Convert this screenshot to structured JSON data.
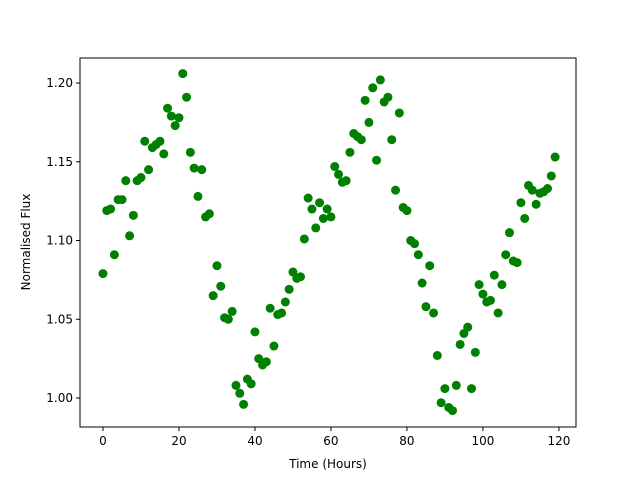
{
  "chart_data": {
    "type": "scatter",
    "xlabel": "Time (Hours)",
    "ylabel": "Normalised Flux",
    "color": "#008000",
    "x": [
      0,
      1,
      2,
      3,
      4,
      5,
      6,
      7,
      8,
      9,
      10,
      11,
      12,
      13,
      14,
      15,
      16,
      17,
      18,
      19,
      20,
      21,
      22,
      23,
      24,
      25,
      26,
      27,
      28,
      29,
      30,
      31,
      32,
      33,
      34,
      35,
      36,
      37,
      38,
      39,
      40,
      41,
      42,
      43,
      44,
      45,
      46,
      47,
      48,
      49,
      50,
      51,
      52,
      53,
      54,
      55,
      56,
      57,
      58,
      59,
      60,
      61,
      62,
      63,
      64,
      65,
      66,
      67,
      68,
      69,
      70,
      71,
      72,
      73,
      74,
      75,
      76,
      77,
      78,
      79,
      80,
      81,
      82,
      83,
      84,
      85,
      86,
      87,
      88,
      89,
      90,
      91,
      92,
      93,
      94,
      95,
      96,
      97,
      98,
      99,
      100,
      101,
      102,
      103,
      104,
      105,
      106,
      107,
      108,
      109,
      110,
      111,
      112,
      113,
      114,
      115,
      116,
      117,
      118,
      119
    ],
    "values": [
      1.079,
      1.119,
      1.12,
      1.091,
      1.126,
      1.126,
      1.138,
      1.103,
      1.116,
      1.138,
      1.14,
      1.163,
      1.145,
      1.159,
      1.161,
      1.163,
      1.155,
      1.184,
      1.179,
      1.173,
      1.178,
      1.206,
      1.191,
      1.156,
      1.146,
      1.128,
      1.145,
      1.115,
      1.117,
      1.065,
      1.084,
      1.071,
      1.051,
      1.05,
      1.055,
      1.008,
      1.003,
      0.996,
      1.012,
      1.009,
      1.042,
      1.025,
      1.021,
      1.023,
      1.057,
      1.033,
      1.053,
      1.054,
      1.061,
      1.069,
      1.08,
      1.076,
      1.077,
      1.101,
      1.127,
      1.12,
      1.108,
      1.124,
      1.114,
      1.12,
      1.115,
      1.147,
      1.142,
      1.137,
      1.138,
      1.156,
      1.168,
      1.166,
      1.164,
      1.189,
      1.175,
      1.197,
      1.151,
      1.202,
      1.188,
      1.191,
      1.164,
      1.132,
      1.181,
      1.121,
      1.119,
      1.1,
      1.098,
      1.091,
      1.073,
      1.058,
      1.084,
      1.054,
      1.027,
      0.997,
      1.006,
      0.994,
      0.992,
      1.008,
      1.034,
      1.041,
      1.045,
      1.006,
      1.029,
      1.072,
      1.066,
      1.061,
      1.062,
      1.078,
      1.054,
      1.072,
      1.091,
      1.105,
      1.087,
      1.086,
      1.124,
      1.114,
      1.135,
      1.132,
      1.123,
      1.13,
      1.131,
      1.133,
      1.141,
      1.153
    ],
    "xlim": [
      -6.05,
      124.5
    ],
    "ylim": [
      0.9816,
      1.2159
    ],
    "xticks": [
      0,
      20,
      40,
      60,
      80,
      100,
      120
    ],
    "yticks": [
      {
        "value": 1.0,
        "label": "1.00"
      },
      {
        "value": 1.05,
        "label": "1.05"
      },
      {
        "value": 1.1,
        "label": "1.10"
      },
      {
        "value": 1.15,
        "label": "1.15"
      },
      {
        "value": 1.2,
        "label": "1.20"
      }
    ]
  }
}
